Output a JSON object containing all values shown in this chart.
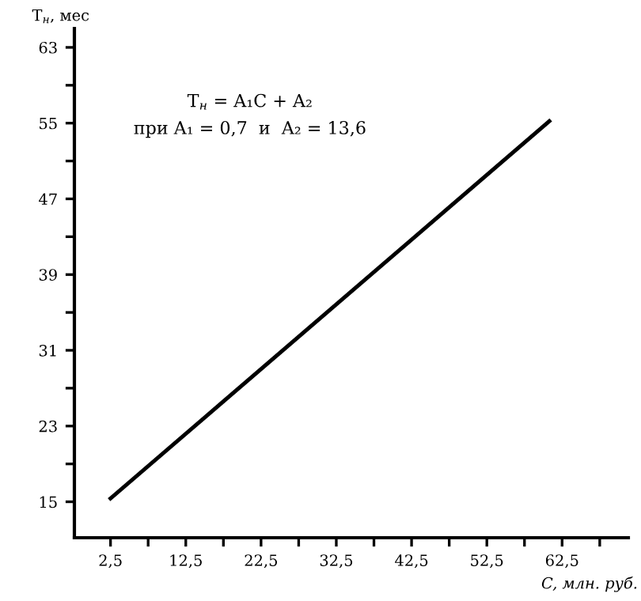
{
  "chart_data": {
    "type": "line",
    "xlabel": "C, млн. руб.",
    "ylabel": "T$_{н}$, мес",
    "annotations": [
      "T$_{н}$ = A₁C + A₂",
      "при A₁ = 0,7  и  A₂ = 13,6"
    ],
    "x": [
      2.5,
      60.8
    ],
    "series": [
      {
        "color": "#000000",
        "values": [
          15.35,
          55.2
        ]
      }
    ],
    "xlim": [
      -2.3,
      71.3
    ],
    "ylim": [
      11.2,
      65
    ],
    "xticks": [
      {
        "value": 2.5,
        "label": "2,5"
      },
      {
        "value": 7.5,
        "label": null
      },
      {
        "value": 12.5,
        "label": "12,5"
      },
      {
        "value": 17.5,
        "label": null
      },
      {
        "value": 22.5,
        "label": "22,5"
      },
      {
        "value": 27.5,
        "label": null
      },
      {
        "value": 32.5,
        "label": "32,5"
      },
      {
        "value": 37.5,
        "label": null
      },
      {
        "value": 42.5,
        "label": "42,5"
      },
      {
        "value": 47.5,
        "label": null
      },
      {
        "value": 52.5,
        "label": "52,5"
      },
      {
        "value": 57.5,
        "label": null
      },
      {
        "value": 62.5,
        "label": "62,5"
      },
      {
        "value": 67.5,
        "label": null
      }
    ],
    "yticks": [
      15,
      {
        "value": 19,
        "label": null
      },
      23,
      {
        "value": 27,
        "label": null
      },
      31,
      {
        "value": 35,
        "label": null
      },
      39,
      {
        "value": 43,
        "label": null
      },
      47,
      {
        "value": 51,
        "label": null
      },
      55,
      {
        "value": 59,
        "label": null
      },
      63
    ],
    "grid": false,
    "legend": false,
    "marker": "none",
    "line_style": "solid"
  }
}
